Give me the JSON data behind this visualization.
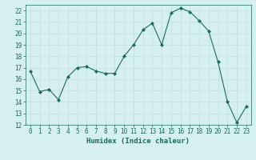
{
  "x": [
    0,
    1,
    2,
    3,
    4,
    5,
    6,
    7,
    8,
    9,
    10,
    11,
    12,
    13,
    14,
    15,
    16,
    17,
    18,
    19,
    20,
    21,
    22,
    23
  ],
  "y": [
    16.7,
    14.9,
    15.1,
    14.2,
    16.2,
    17.0,
    17.1,
    16.7,
    16.5,
    16.5,
    18.0,
    19.0,
    20.3,
    20.9,
    19.0,
    21.8,
    22.2,
    21.9,
    21.1,
    20.2,
    17.5,
    14.0,
    12.2,
    13.6
  ],
  "xlabel": "Humidex (Indice chaleur)",
  "ylim": [
    12,
    22.5
  ],
  "xlim": [
    -0.5,
    23.5
  ],
  "yticks": [
    12,
    13,
    14,
    15,
    16,
    17,
    18,
    19,
    20,
    21,
    22
  ],
  "xticks": [
    0,
    1,
    2,
    3,
    4,
    5,
    6,
    7,
    8,
    9,
    10,
    11,
    12,
    13,
    14,
    15,
    16,
    17,
    18,
    19,
    20,
    21,
    22,
    23
  ],
  "line_color": "#1a6b5a",
  "marker_color": "#1a6b5a",
  "bg_color": "#d6f0f0",
  "grid_color": "#c0dede",
  "label_color": "#1a6b5a",
  "xlabel_fontsize": 6.5,
  "tick_fontsize": 5.5
}
